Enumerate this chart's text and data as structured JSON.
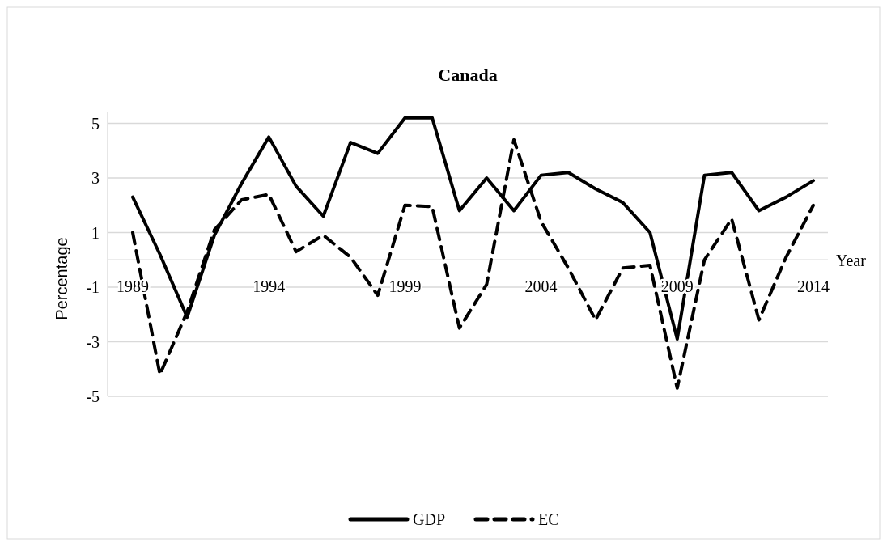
{
  "chart_data": {
    "type": "line",
    "title": "Canada",
    "xlabel": "Year",
    "ylabel": "Percentage",
    "categories": [
      "1989",
      null,
      null,
      null,
      null,
      "1994",
      null,
      null,
      null,
      null,
      "1999",
      null,
      null,
      null,
      null,
      "2004",
      null,
      null,
      null,
      null,
      "2009",
      null,
      null,
      null,
      null,
      "2014"
    ],
    "series": [
      {
        "name": "GDP",
        "color": "#000000",
        "line_style": "solid",
        "values": [
          2.3,
          0.2,
          -2.1,
          0.9,
          2.8,
          4.5,
          2.7,
          1.6,
          4.3,
          3.9,
          5.2,
          5.2,
          1.8,
          3.0,
          1.8,
          3.1,
          3.2,
          2.6,
          2.1,
          1.0,
          -2.9,
          3.1,
          3.2,
          1.8,
          2.3,
          2.9
        ]
      },
      {
        "name": "EC",
        "color": "#000000",
        "line_style": "dashed",
        "values": [
          1.0,
          -4.2,
          -1.9,
          1.1,
          2.2,
          2.4,
          0.3,
          0.9,
          0.1,
          -1.3,
          2.0,
          1.95,
          -2.5,
          -0.9,
          4.4,
          1.4,
          -0.3,
          -2.2,
          -0.3,
          -0.2,
          -4.7,
          0.0,
          1.5,
          -2.2,
          0.1,
          2.0
        ]
      }
    ],
    "ylim": [
      -5,
      5.4
    ],
    "yticks": [
      -5,
      -3,
      -1,
      1,
      3,
      5
    ],
    "grid": "y",
    "legend": "bottom"
  }
}
